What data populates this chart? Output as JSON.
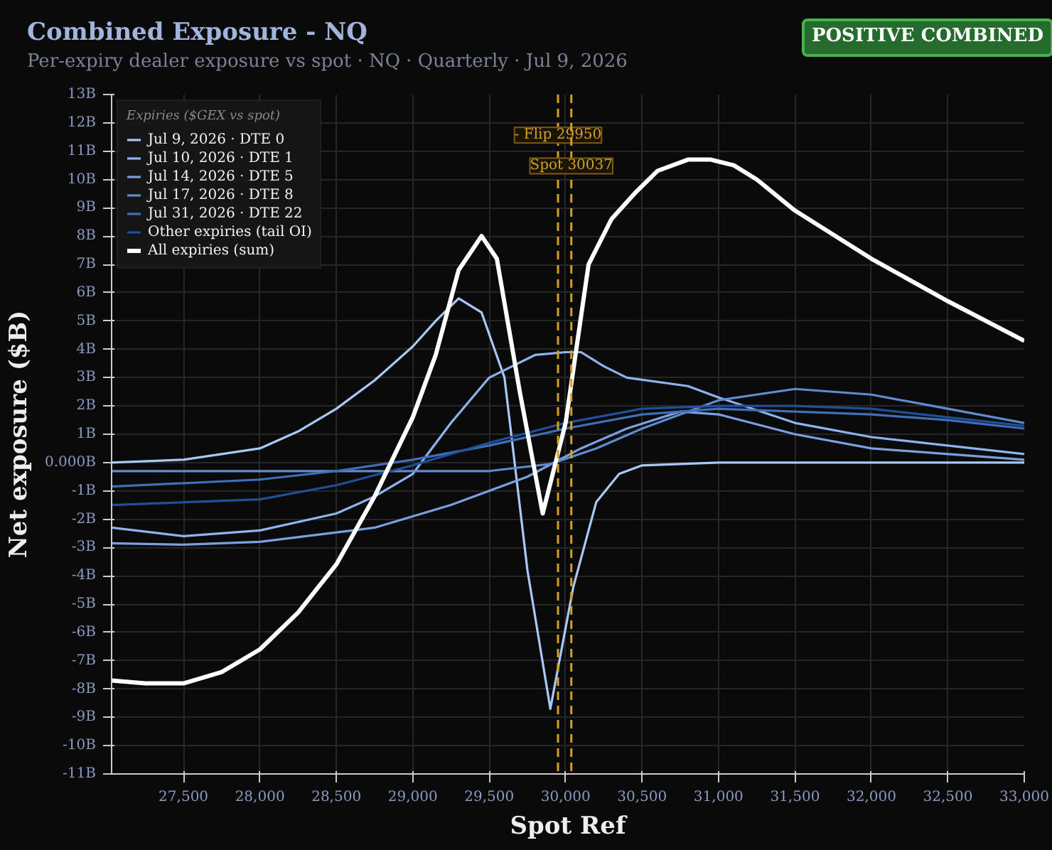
{
  "chart_data": {
    "type": "line",
    "title": "Combined Exposure - NQ",
    "subtitle": "Per-expiry dealer exposure vs spot · NQ · Quarterly · Jul 9, 2026",
    "xlabel": "Spot Ref",
    "ylabel": "Net exposure ($B)",
    "legend_title": "Expiries ($GEX vs spot)",
    "annotations": [
      "POSITIVE COMBINED"
    ],
    "xlim": [
      27030,
      33000
    ],
    "ylim": [
      -11,
      13
    ],
    "xticks": [
      {
        "value": 27500,
        "label": "27,500"
      },
      {
        "value": 28000,
        "label": "28,000"
      },
      {
        "value": 28500,
        "label": "28,500"
      },
      {
        "value": 29000,
        "label": "29,000"
      },
      {
        "value": 29500,
        "label": "29,500"
      },
      {
        "value": 30000,
        "label": "30,000"
      },
      {
        "value": 30500,
        "label": "30,500"
      },
      {
        "value": 31000,
        "label": "31,000"
      },
      {
        "value": 31500,
        "label": "31,500"
      },
      {
        "value": 32000,
        "label": "32,000"
      },
      {
        "value": 32500,
        "label": "32,500"
      },
      {
        "value": 33000,
        "label": "33,000"
      }
    ],
    "yticks": [
      {
        "value": -11,
        "label": "-11B"
      },
      {
        "value": -10,
        "label": "-10B"
      },
      {
        "value": -9,
        "label": "-9B"
      },
      {
        "value": -8,
        "label": "-8B"
      },
      {
        "value": -7,
        "label": "-7B"
      },
      {
        "value": -6,
        "label": "-6B"
      },
      {
        "value": -5,
        "label": "-5B"
      },
      {
        "value": -4,
        "label": "-4B"
      },
      {
        "value": -3,
        "label": "-3B"
      },
      {
        "value": -2,
        "label": "-2B"
      },
      {
        "value": -1,
        "label": "-1B"
      },
      {
        "value": 0,
        "label": "0.000B"
      },
      {
        "value": 1,
        "label": "1B"
      },
      {
        "value": 2,
        "label": "2B"
      },
      {
        "value": 3,
        "label": "3B"
      },
      {
        "value": 4,
        "label": "4B"
      },
      {
        "value": 5,
        "label": "5B"
      },
      {
        "value": 6,
        "label": "6B"
      },
      {
        "value": 7,
        "label": "7B"
      },
      {
        "value": 8,
        "label": "8B"
      },
      {
        "value": 9,
        "label": "9B"
      },
      {
        "value": 10,
        "label": "10B"
      },
      {
        "value": 11,
        "label": "11B"
      },
      {
        "value": 12,
        "label": "12B"
      },
      {
        "value": 13,
        "label": "13B"
      }
    ],
    "grid": true,
    "legend": "top left",
    "marker": "none",
    "line_style": "solid",
    "series": [
      {
        "name": "Jul 9, 2026 · DTE 0",
        "color": "#a8c8f8",
        "x": [
          27030,
          27500,
          28000,
          28250,
          28500,
          28750,
          29000,
          29150,
          29300,
          29450,
          29600,
          29750,
          29900,
          30050,
          30200,
          30350,
          30500,
          31000,
          32000,
          33000
        ],
        "values": [
          0.0,
          0.1,
          0.5,
          1.1,
          1.9,
          2.9,
          4.1,
          5.0,
          5.8,
          5.3,
          3.0,
          -3.8,
          -8.7,
          -4.4,
          -1.4,
          -0.4,
          -0.1,
          0.0,
          0.0,
          0.0
        ]
      },
      {
        "name": "Jul 10, 2026 · DTE 1",
        "color": "#8fb3ee",
        "x": [
          27030,
          27500,
          28000,
          28500,
          28750,
          29000,
          29250,
          29500,
          29800,
          30000,
          30100,
          30250,
          30400,
          30800,
          31000,
          31500,
          32000,
          33000
        ],
        "values": [
          -2.3,
          -2.6,
          -2.4,
          -1.8,
          -1.2,
          -0.4,
          1.4,
          3.0,
          3.8,
          3.9,
          3.9,
          3.4,
          3.0,
          2.7,
          2.3,
          1.4,
          0.9,
          0.3
        ]
      },
      {
        "name": "Jul 14, 2026 · DTE 5",
        "color": "#7aa0e0",
        "x": [
          27030,
          27500,
          28000,
          28750,
          29250,
          29750,
          30100,
          30400,
          30750,
          31000,
          31500,
          32000,
          33000
        ],
        "values": [
          -2.85,
          -2.9,
          -2.8,
          -2.3,
          -1.5,
          -0.5,
          0.5,
          1.2,
          1.8,
          1.7,
          1.0,
          0.5,
          0.1
        ]
      },
      {
        "name": "Jul 17, 2026 · DTE 8",
        "color": "#5f8bd0",
        "x": [
          27030,
          28000,
          29000,
          29500,
          29900,
          30200,
          30500,
          31000,
          31500,
          32000,
          32500,
          33000
        ],
        "values": [
          -0.3,
          -0.3,
          -0.3,
          -0.3,
          -0.05,
          0.5,
          1.2,
          2.2,
          2.6,
          2.4,
          1.9,
          1.4
        ]
      },
      {
        "name": "Jul 31, 2026 · DTE 22",
        "color": "#3f6fb8",
        "x": [
          27030,
          28000,
          28500,
          29000,
          29500,
          30000,
          30500,
          31000,
          31500,
          32000,
          32500,
          33000
        ],
        "values": [
          -0.85,
          -0.6,
          -0.3,
          0.1,
          0.6,
          1.2,
          1.7,
          1.9,
          1.8,
          1.7,
          1.5,
          1.2
        ]
      },
      {
        "name": "Other expiries (tail OI)",
        "color": "#1f4f98",
        "x": [
          27030,
          28000,
          28500,
          29000,
          29500,
          30000,
          30500,
          31000,
          31500,
          32000,
          32500,
          33000
        ],
        "values": [
          -1.5,
          -1.3,
          -0.8,
          -0.1,
          0.7,
          1.4,
          1.9,
          2.0,
          2.0,
          1.9,
          1.6,
          1.3
        ]
      },
      {
        "name": "All expiries (sum)",
        "color": "#ffffff",
        "x": [
          27030,
          27250,
          27500,
          27750,
          28000,
          28250,
          28500,
          28750,
          29000,
          29150,
          29300,
          29450,
          29550,
          29700,
          29850,
          30000,
          30150,
          30300,
          30450,
          30600,
          30800,
          30950,
          31100,
          31250,
          31500,
          32000,
          32500,
          33000
        ],
        "values": [
          -7.7,
          -7.8,
          -7.8,
          -7.4,
          -6.6,
          -5.3,
          -3.6,
          -1.2,
          1.6,
          3.8,
          6.8,
          8.0,
          7.2,
          2.5,
          -1.8,
          1.4,
          7.0,
          8.6,
          9.5,
          10.3,
          10.7,
          10.7,
          10.5,
          10.0,
          8.9,
          7.2,
          5.7,
          4.3
        ]
      }
    ],
    "ref_lines": [
      {
        "axis": "x",
        "value": 29950,
        "label": "- Flip 29950",
        "color": "#d4a020",
        "line_style": "dashed"
      },
      {
        "axis": "x",
        "value": 30037,
        "label": "Spot 30037",
        "color": "#d4a020",
        "line_style": "dashed"
      }
    ]
  }
}
